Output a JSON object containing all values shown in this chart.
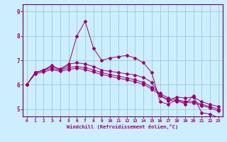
{
  "xlabel": "Windchill (Refroidissement éolien,°C)",
  "bg_color": "#cceeff",
  "grid_color": "#99cccc",
  "line_color": "#990077",
  "spine_color": "#660066",
  "xmin": -0.5,
  "xmax": 23.5,
  "ymin": 4.7,
  "ymax": 9.3,
  "yticks": [
    5,
    6,
    7,
    8,
    9
  ],
  "xticks": [
    0,
    1,
    2,
    3,
    4,
    5,
    6,
    7,
    8,
    9,
    10,
    11,
    12,
    13,
    14,
    15,
    16,
    17,
    18,
    19,
    20,
    21,
    22,
    23
  ],
  "series": [
    [
      6.0,
      6.5,
      6.6,
      6.8,
      6.6,
      6.8,
      8.0,
      8.6,
      7.5,
      7.0,
      7.1,
      7.15,
      7.2,
      7.1,
      6.9,
      6.5,
      5.3,
      5.2,
      5.4,
      5.2,
      5.55,
      4.85,
      4.8,
      4.65
    ],
    [
      6.0,
      6.5,
      6.6,
      6.75,
      6.65,
      6.85,
      6.9,
      6.85,
      6.75,
      6.6,
      6.55,
      6.5,
      6.45,
      6.4,
      6.3,
      6.1,
      5.55,
      5.35,
      5.5,
      5.45,
      5.5,
      5.3,
      5.2,
      5.1
    ],
    [
      6.0,
      6.5,
      6.58,
      6.68,
      6.6,
      6.7,
      6.75,
      6.7,
      6.6,
      6.5,
      6.42,
      6.35,
      6.28,
      6.2,
      6.1,
      5.9,
      5.65,
      5.45,
      5.38,
      5.32,
      5.32,
      5.2,
      5.1,
      5.0
    ],
    [
      6.0,
      6.45,
      6.52,
      6.62,
      6.55,
      6.62,
      6.68,
      6.62,
      6.52,
      6.42,
      6.35,
      6.27,
      6.2,
      6.12,
      6.02,
      5.82,
      5.58,
      5.38,
      5.3,
      5.28,
      5.25,
      5.15,
      5.05,
      4.92
    ]
  ]
}
